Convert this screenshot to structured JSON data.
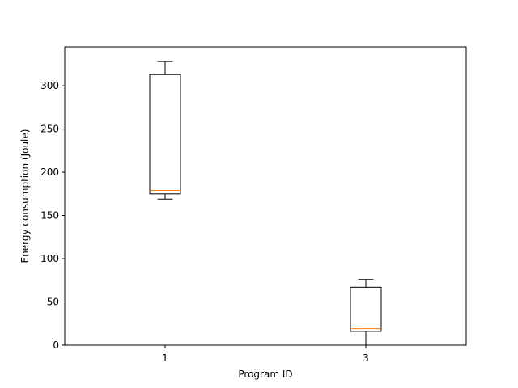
{
  "chart_data": {
    "type": "boxplot",
    "title": "",
    "xlabel": "Program ID",
    "ylabel": "Energy consumption (Joule)",
    "ylim": [
      0,
      345
    ],
    "yticks": [
      0,
      50,
      100,
      150,
      200,
      250,
      300
    ],
    "grid": false,
    "categories": [
      "1",
      "3"
    ],
    "boxes": [
      {
        "category": "1",
        "whisker_low": 169,
        "q1": 175,
        "median": 179,
        "q3": 313,
        "whisker_high": 328
      },
      {
        "category": "3",
        "whisker_low": 0,
        "q1": 16,
        "median": 19,
        "q3": 67,
        "whisker_high": 76
      }
    ],
    "colors": {
      "box": "#000000",
      "median": "#ff7f0e"
    }
  }
}
